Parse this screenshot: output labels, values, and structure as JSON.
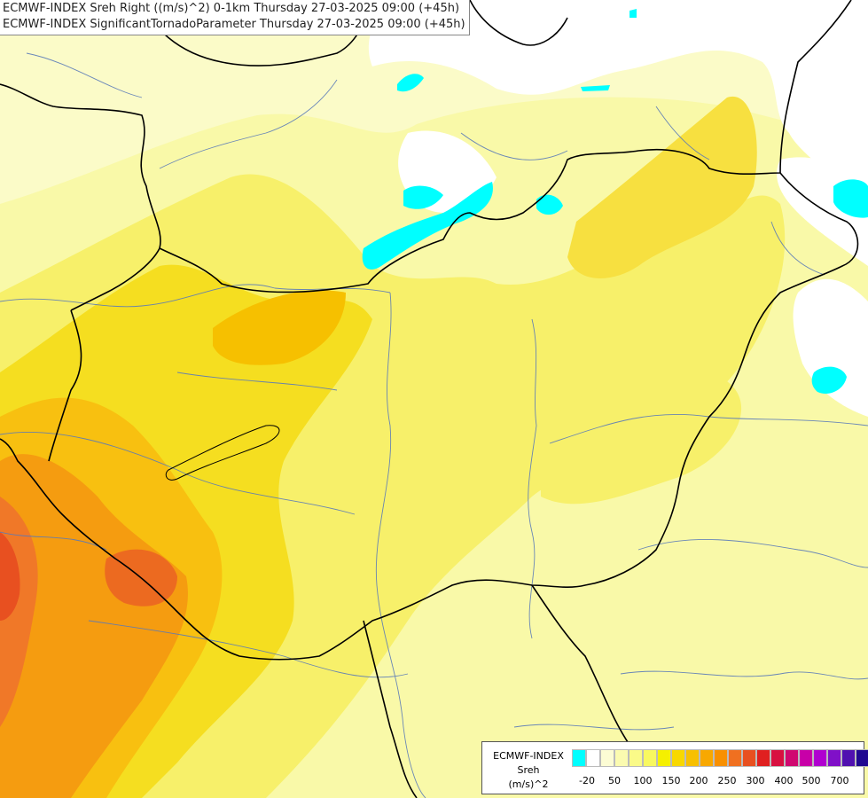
{
  "titles": {
    "line1": "ECMWF-INDEX Sreh Right ((m/s)^2) 0-1km Thursday 27-03-2025 09:00 (+45h)",
    "line2": "ECMWF-INDEX SignificantTornadoParameter Thursday 27-03-2025 09:00 (+45h)"
  },
  "legend": {
    "label_lines": [
      "ECMWF-INDEX",
      "Sreh",
      "(m/s)^2"
    ],
    "colors": [
      "#00ffff",
      "#ffffff",
      "#fcfcd4",
      "#fbfbb0",
      "#fafa88",
      "#f8f860",
      "#f5f000",
      "#f8d800",
      "#f8c000",
      "#f8a800",
      "#f89000",
      "#f07020",
      "#e85020",
      "#e02020",
      "#d81040",
      "#d00870",
      "#c800a8",
      "#b000d0",
      "#8010c8",
      "#5010b0",
      "#200890"
    ],
    "ticks": [
      "-20",
      "50",
      "100",
      "150",
      "200",
      "250",
      "300",
      "400",
      "500",
      "700"
    ]
  }
}
